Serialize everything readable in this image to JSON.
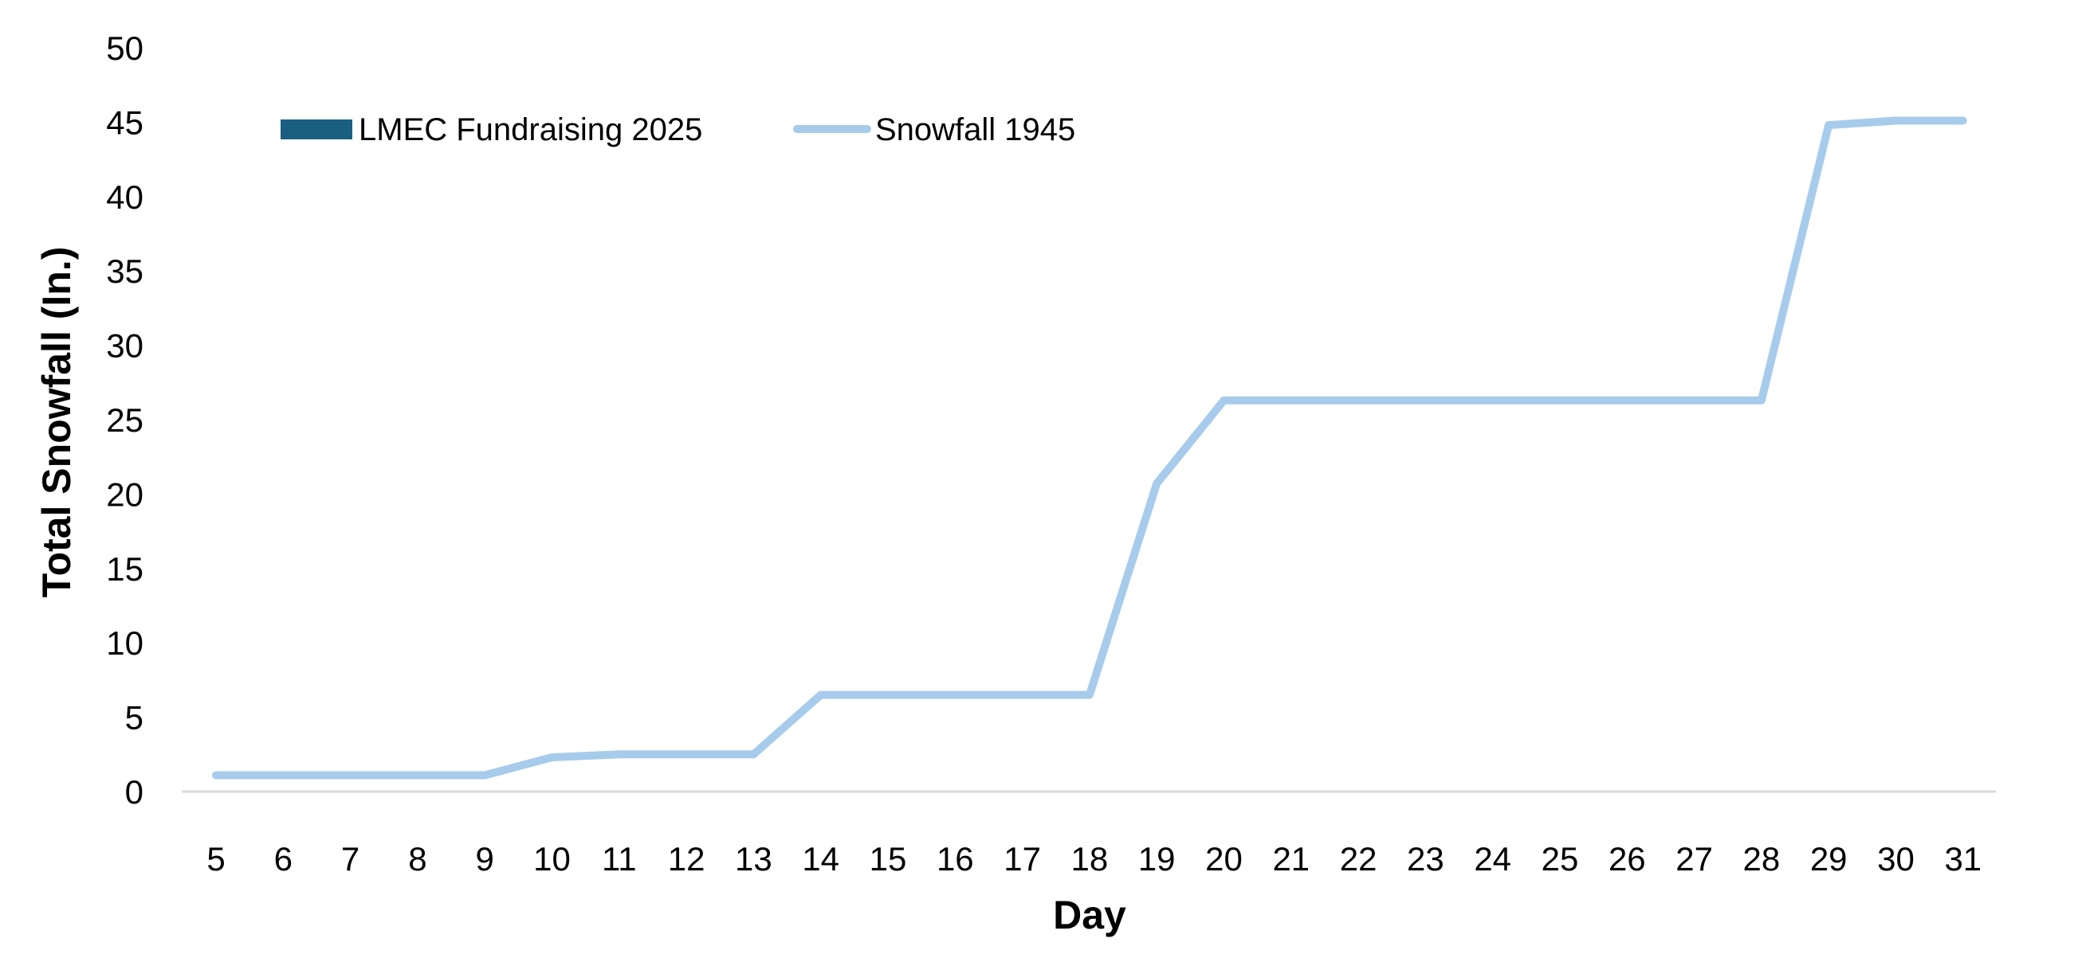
{
  "chart_data": {
    "type": "line",
    "title": "",
    "xlabel": "Day",
    "ylabel": "Total Snowfall (In.)",
    "ylim": [
      0,
      50
    ],
    "yticks": [
      0,
      5,
      10,
      15,
      20,
      25,
      30,
      35,
      40,
      45,
      50
    ],
    "grid": false,
    "legend_position": "top-left (inside plot)",
    "categories": [
      5,
      6,
      7,
      8,
      9,
      10,
      11,
      12,
      13,
      14,
      15,
      16,
      17,
      18,
      19,
      20,
      21,
      22,
      23,
      24,
      25,
      26,
      27,
      28,
      29,
      30,
      31
    ],
    "legend": [
      {
        "name": "LMEC Fundraising 2025",
        "type": "bar",
        "color": "#1A5F80"
      },
      {
        "name": "Snowfall 1945",
        "type": "line",
        "color": "#A7CBEB"
      }
    ],
    "series": [
      {
        "name": "LMEC Fundraising 2025",
        "type": "bar",
        "color": "#1A5F80",
        "values": []
      },
      {
        "name": "Snowfall 1945",
        "type": "line",
        "color": "#A7CBEB",
        "values": [
          1.1,
          1.1,
          1.1,
          1.1,
          1.1,
          2.3,
          2.5,
          2.5,
          2.5,
          6.5,
          6.5,
          6.5,
          6.5,
          6.5,
          20.7,
          26.3,
          26.3,
          26.3,
          26.3,
          26.3,
          26.3,
          26.3,
          26.3,
          26.3,
          44.8,
          45.1,
          45.1
        ]
      }
    ]
  },
  "colors": {
    "axis_line": "#D9D9D9",
    "bar_series": "#1A5F80",
    "line_series": "#A7CBEB",
    "text": "#000000"
  }
}
